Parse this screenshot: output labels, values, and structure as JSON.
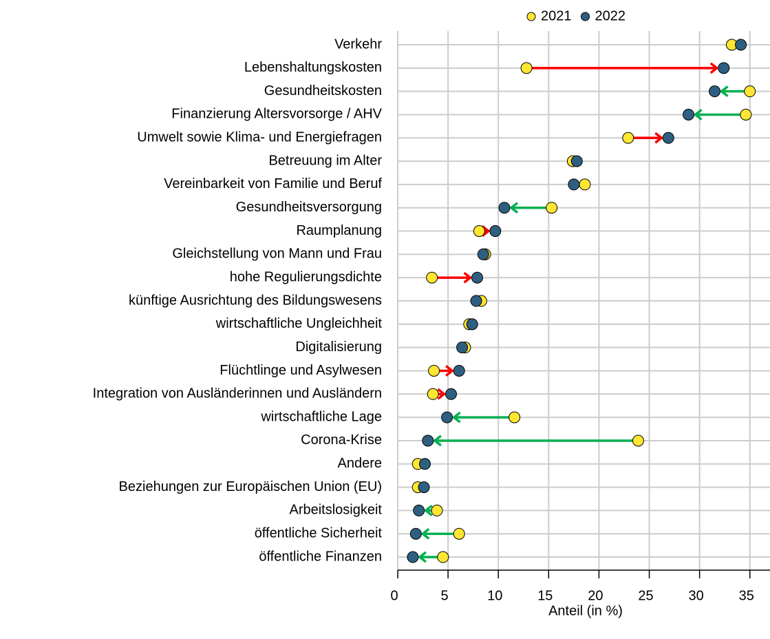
{
  "chart_data": {
    "type": "dumbbell",
    "x_label": "Anteil (in %)",
    "categories": [
      "Verkehr",
      "Lebenshaltungskosten",
      "Gesundheitskosten",
      "Finanzierung Altersvorsorge / AHV",
      "Umwelt sowie Klima- und Energiefragen",
      "Betreuung im Alter",
      "Vereinbarkeit von Familie und Beruf",
      "Gesundheitsversorgung",
      "Raumplanung",
      "Gleichstellung von Mann und Frau",
      "hohe Regulierungsdichte",
      "künftige Ausrichtung des Bildungswesens",
      "wirtschaftliche Ungleichheit",
      "Digitalisierung",
      "Flüchtlinge und Asylwesen",
      "Integration von Ausländerinnen und Ausländern",
      "wirtschaftliche Lage",
      "Corona-Krise",
      "Andere",
      "Beziehungen zur Europäischen Union (EU)",
      "Arbeitslosigkeit",
      "öffentliche Sicherheit",
      "öffentliche Finanzen"
    ],
    "series": [
      {
        "name": "2021",
        "color": "#ffe633",
        "values": [
          33.2,
          12.8,
          35.0,
          34.6,
          22.9,
          17.4,
          18.6,
          15.3,
          8.1,
          8.7,
          3.4,
          8.3,
          7.1,
          6.7,
          3.6,
          3.5,
          11.6,
          23.9,
          2.0,
          2.0,
          3.9,
          6.1,
          4.5
        ]
      },
      {
        "name": "2022",
        "color": "#2e5f80",
        "values": [
          34.1,
          32.4,
          31.5,
          28.9,
          26.9,
          17.8,
          17.5,
          10.6,
          9.7,
          8.5,
          7.9,
          7.8,
          7.4,
          6.4,
          6.1,
          5.3,
          4.9,
          3.0,
          2.7,
          2.6,
          2.1,
          1.8,
          1.5
        ]
      }
    ],
    "increase_color": "#ff0000",
    "decrease_color": "#00b050",
    "xlim": [
      0,
      37
    ],
    "xticks": [
      0,
      5,
      10,
      15,
      20,
      25,
      30,
      35
    ],
    "grid": true,
    "legend": "top"
  }
}
